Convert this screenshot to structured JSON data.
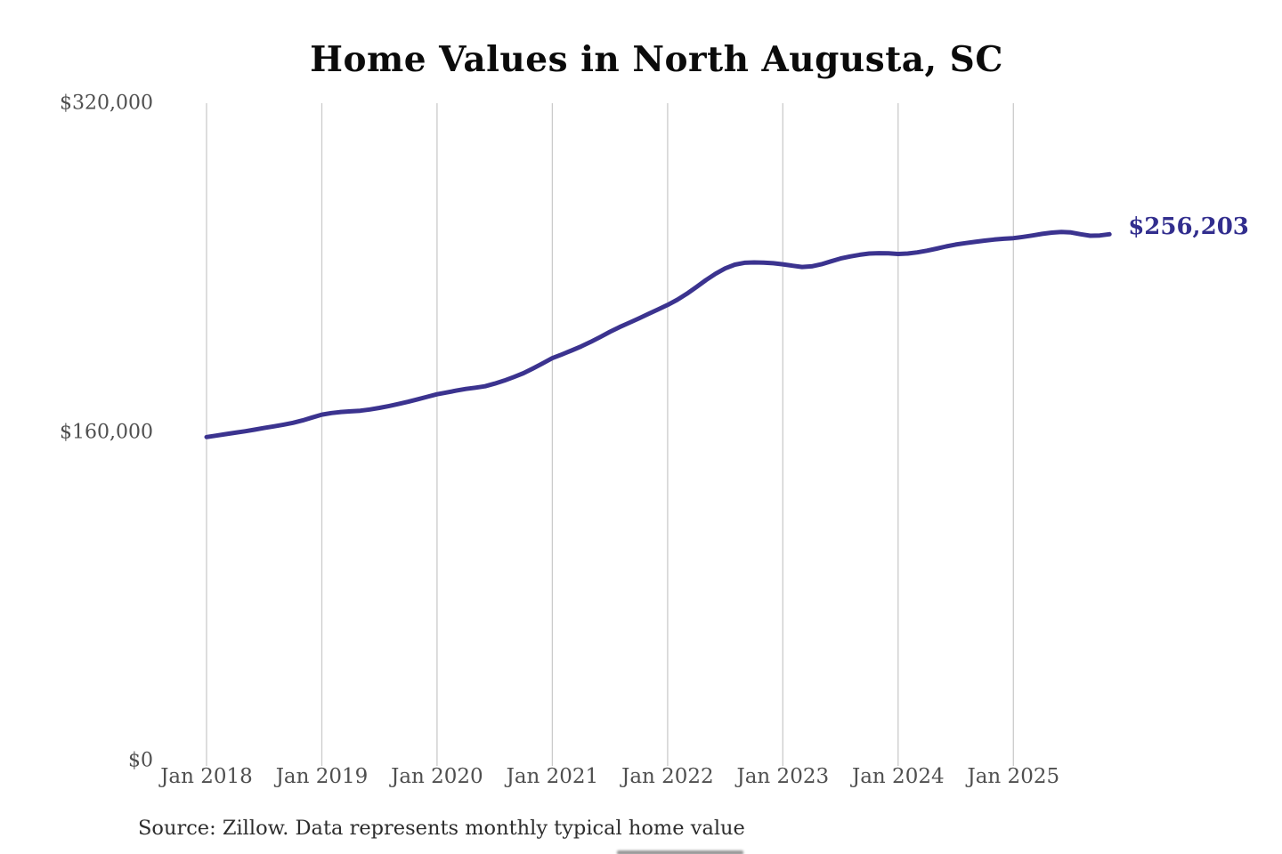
{
  "title": "Home Values in North Augusta, SC",
  "source_note": "Source: Zillow. Data represents monthly typical home value",
  "colors": {
    "line": "#3b338f",
    "end_label": "#322e8e",
    "grid": "#cbcbcb",
    "axis_text": "#4f4f4f",
    "title_text": "#0b0b0b",
    "source_text": "#2d2d2d",
    "background": "#ffffff"
  },
  "chart_data": {
    "type": "line",
    "title": "Home Values in North Augusta, SC",
    "series_name": "Monthly typical home value (ZHVI)",
    "x_start": "Jan 2018",
    "x_end": "Nov 2025",
    "x_interval": "monthly",
    "x_tick_labels": [
      "Jan 2018",
      "Jan 2019",
      "Jan 2020",
      "Jan 2021",
      "Jan 2022",
      "Jan 2023",
      "Jan 2024",
      "Jan 2025"
    ],
    "y_tick_labels": [
      "$0",
      "$160,000",
      "$320,000"
    ],
    "y_ticks": [
      0,
      160000,
      320000
    ],
    "ylim": [
      0,
      320000
    ],
    "grid": "vertical-only",
    "legend": "none",
    "last_value": 256203,
    "last_value_label": "$256,203",
    "values": [
      157500,
      158200,
      158900,
      159600,
      160300,
      161100,
      161900,
      162700,
      163500,
      164400,
      165600,
      167000,
      168400,
      169200,
      169700,
      170000,
      170300,
      170900,
      171700,
      172600,
      173600,
      174700,
      175900,
      177100,
      178300,
      179200,
      180100,
      180900,
      181500,
      182200,
      183500,
      185000,
      186700,
      188600,
      190900,
      193400,
      195900,
      197700,
      199600,
      201600,
      203800,
      206200,
      208700,
      211000,
      213100,
      215200,
      217400,
      219600,
      221800,
      224300,
      227200,
      230500,
      233900,
      237000,
      239600,
      241400,
      242300,
      242500,
      242400,
      242100,
      241600,
      240900,
      240300,
      240600,
      241600,
      243000,
      244400,
      245400,
      246200,
      246800,
      247000,
      246900,
      246600,
      246800,
      247400,
      248200,
      249200,
      250300,
      251200,
      251900,
      252500,
      253100,
      253600,
      254000,
      254300,
      254900,
      255600,
      256400,
      257000,
      257300,
      257100,
      256200,
      255500,
      255600,
      256203
    ]
  }
}
